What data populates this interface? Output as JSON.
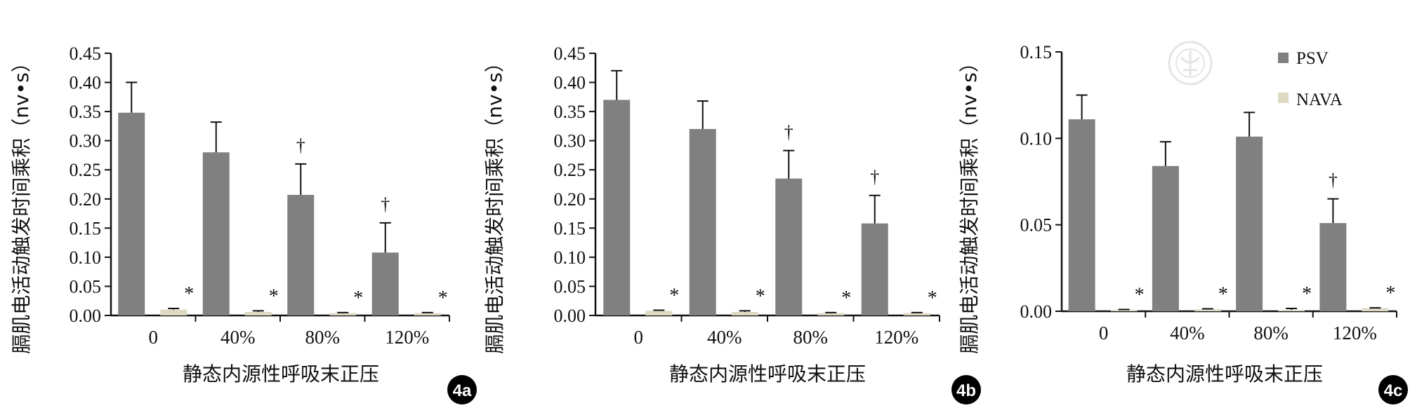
{
  "colors": {
    "psv": "#808080",
    "nava": "#ddd9c3",
    "axis": "#111111",
    "badge_bg": "#000000",
    "badge_fg": "#ffffff"
  },
  "legend": {
    "psv_label": "PSV",
    "nava_label": "NAVA"
  },
  "watermark": {
    "text": "中華醫學會"
  },
  "chart_data": [
    {
      "type": "bar",
      "panel_label": "4a",
      "ylabel": "膈肌电活动触发时间乘积（nv•s）",
      "xlabel": "静态内源性呼吸末正压",
      "categories": [
        "0",
        "40%",
        "80%",
        "120%"
      ],
      "ylim": [
        0,
        0.45
      ],
      "yticks": [
        "0.00",
        "0.05",
        "0.10",
        "0.15",
        "0.20",
        "0.25",
        "0.30",
        "0.35",
        "0.40",
        "0.45"
      ],
      "series": [
        {
          "name": "PSV",
          "values": [
            0.348,
            0.28,
            0.207,
            0.108
          ],
          "errors": [
            0.052,
            0.052,
            0.053,
            0.051
          ]
        },
        {
          "name": "NAVA",
          "values": [
            0.01,
            0.006,
            0.004,
            0.004
          ],
          "errors": [
            0.002,
            0.002,
            0.001,
            0.001
          ]
        }
      ],
      "annotations": [
        {
          "category": "0",
          "series": "NAVA",
          "text": "*"
        },
        {
          "category": "40%",
          "series": "NAVA",
          "text": "*"
        },
        {
          "category": "80%",
          "series": "NAVA",
          "text": "*"
        },
        {
          "category": "120%",
          "series": "NAVA",
          "text": "*"
        },
        {
          "category": "80%",
          "series": "PSV",
          "text": "†"
        },
        {
          "category": "120%",
          "series": "PSV",
          "text": "†"
        }
      ]
    },
    {
      "type": "bar",
      "panel_label": "4b",
      "ylabel": "膈肌电活动触发时间乘积（nv•s）",
      "xlabel": "静态内源性呼吸末正压",
      "categories": [
        "0",
        "40%",
        "80%",
        "120%"
      ],
      "ylim": [
        0,
        0.45
      ],
      "yticks": [
        "0.00",
        "0.05",
        "0.10",
        "0.15",
        "0.20",
        "0.25",
        "0.30",
        "0.35",
        "0.40",
        "0.45"
      ],
      "series": [
        {
          "name": "PSV",
          "values": [
            0.37,
            0.32,
            0.235,
            0.158
          ],
          "errors": [
            0.05,
            0.048,
            0.048,
            0.048
          ]
        },
        {
          "name": "NAVA",
          "values": [
            0.008,
            0.006,
            0.004,
            0.004
          ],
          "errors": [
            0.001,
            0.002,
            0.001,
            0.001
          ]
        }
      ],
      "annotations": [
        {
          "category": "0",
          "series": "NAVA",
          "text": "*"
        },
        {
          "category": "40%",
          "series": "NAVA",
          "text": "*"
        },
        {
          "category": "80%",
          "series": "NAVA",
          "text": "*"
        },
        {
          "category": "120%",
          "series": "NAVA",
          "text": "*"
        },
        {
          "category": "80%",
          "series": "PSV",
          "text": "†"
        },
        {
          "category": "120%",
          "series": "PSV",
          "text": "†"
        }
      ]
    },
    {
      "type": "bar",
      "panel_label": "4c",
      "ylabel": "膈肌电活动触发时间乘积（nv•s）",
      "xlabel": "静态内源性呼吸末正压",
      "categories": [
        "0",
        "40%",
        "80%",
        "120%"
      ],
      "ylim": [
        0,
        0.15
      ],
      "yticks": [
        "0.00",
        "0.05",
        "0.10",
        "0.15"
      ],
      "legend_position": "top-right",
      "series": [
        {
          "name": "PSV",
          "values": [
            0.111,
            0.084,
            0.101,
            0.051
          ],
          "errors": [
            0.014,
            0.014,
            0.014,
            0.014
          ]
        },
        {
          "name": "NAVA",
          "values": [
            0.0008,
            0.0012,
            0.0008,
            0.0018
          ],
          "errors": [
            0.0002,
            0.0002,
            0.0008,
            0.0002
          ]
        }
      ],
      "annotations": [
        {
          "category": "0",
          "series": "NAVA",
          "text": "*"
        },
        {
          "category": "40%",
          "series": "NAVA",
          "text": "*"
        },
        {
          "category": "80%",
          "series": "NAVA",
          "text": "*"
        },
        {
          "category": "120%",
          "series": "NAVA",
          "text": "*"
        },
        {
          "category": "120%",
          "series": "PSV",
          "text": "†"
        }
      ]
    }
  ]
}
